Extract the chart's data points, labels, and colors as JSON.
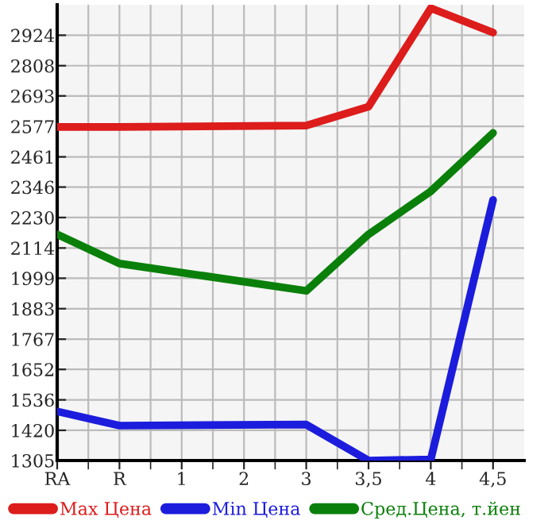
{
  "chart_data": {
    "type": "line",
    "categories": [
      "RA",
      "R",
      "1",
      "2",
      "3",
      "3,5",
      "4",
      "4,5"
    ],
    "series": [
      {
        "name": "Max Цена",
        "color": "#dd1c1c",
        "values": [
          2575,
          2575,
          null,
          null,
          2580,
          2652,
          3027,
          2934
        ]
      },
      {
        "name": "Min Цена",
        "color": "#1c1cdd",
        "values": [
          1492,
          1438,
          null,
          null,
          1442,
          1305,
          1309,
          2297
        ]
      },
      {
        "name": "Сред.Цена, т.йен",
        "color": "#0a800a",
        "values": [
          2166,
          2055,
          null,
          null,
          1951,
          2166,
          2330,
          2552
        ]
      }
    ],
    "ylim": [
      1305,
      3040
    ],
    "yticks": [
      1305,
      1420,
      1536,
      1652,
      1767,
      1883,
      1999,
      2114,
      2230,
      2346,
      2461,
      2577,
      2693,
      2808,
      2924
    ],
    "grid": true,
    "legend": "bottom",
    "marker": "none",
    "line_style": "solid"
  }
}
